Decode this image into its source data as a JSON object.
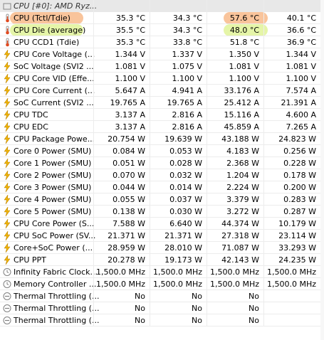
{
  "colors": {
    "highlight_orange": "#f9c49b",
    "highlight_green": "#e5f5a8",
    "header_bg": "#e8e8e8",
    "thermometer": "#e04a20",
    "bolt": "#f0b400",
    "circle_icon": "#808080"
  },
  "header": {
    "label": "CPU [#0]: AMD Ryz..."
  },
  "rows": [
    {
      "label": "CPU (Tctl/Tdie)",
      "icon": "thermometer-icon",
      "values": [
        "35.3 °C",
        "34.3 °C",
        "57.6 °C",
        "40.1 °C"
      ],
      "highlight": "orange"
    },
    {
      "label": "CPU Die (average)",
      "icon": "thermometer-icon",
      "values": [
        "35.5 °C",
        "34.3 °C",
        "48.0 °C",
        "36.6 °C"
      ],
      "highlight": "green"
    },
    {
      "label": "CPU CCD1 (Tdie)",
      "icon": "thermometer-icon",
      "values": [
        "35.3 °C",
        "33.8 °C",
        "51.8 °C",
        "36.9 °C"
      ]
    },
    {
      "label": "CPU Core Voltage (...",
      "icon": "bolt-icon",
      "values": [
        "1.344 V",
        "1.337 V",
        "1.350 V",
        "1.344 V"
      ]
    },
    {
      "label": "SoC Voltage (SVI2 ...",
      "icon": "bolt-icon",
      "values": [
        "1.081 V",
        "1.075 V",
        "1.081 V",
        "1.081 V"
      ]
    },
    {
      "label": "CPU Core VID (Effe...",
      "icon": "bolt-icon",
      "values": [
        "1.100 V",
        "1.100 V",
        "1.100 V",
        "1.100 V"
      ]
    },
    {
      "label": "CPU Core Current (...",
      "icon": "bolt-icon",
      "values": [
        "5.647 A",
        "4.941 A",
        "33.176 A",
        "7.574 A"
      ]
    },
    {
      "label": "SoC Current (SVI2 ...",
      "icon": "bolt-icon",
      "values": [
        "19.765 A",
        "19.765 A",
        "25.412 A",
        "21.391 A"
      ]
    },
    {
      "label": "CPU TDC",
      "icon": "bolt-icon",
      "values": [
        "3.137 A",
        "2.816 A",
        "15.116 A",
        "4.600 A"
      ]
    },
    {
      "label": "CPU EDC",
      "icon": "bolt-icon",
      "values": [
        "3.137 A",
        "2.816 A",
        "45.859 A",
        "7.265 A"
      ]
    },
    {
      "label": "CPU Package Powe...",
      "icon": "bolt-icon",
      "values": [
        "20.754 W",
        "19.639 W",
        "43.188 W",
        "24.823 W"
      ]
    },
    {
      "label": "Core 0 Power (SMU)",
      "icon": "bolt-icon",
      "values": [
        "0.084 W",
        "0.053 W",
        "4.183 W",
        "0.256 W"
      ]
    },
    {
      "label": "Core 1 Power (SMU)",
      "icon": "bolt-icon",
      "values": [
        "0.051 W",
        "0.028 W",
        "2.368 W",
        "0.228 W"
      ]
    },
    {
      "label": "Core 2 Power (SMU)",
      "icon": "bolt-icon",
      "values": [
        "0.070 W",
        "0.032 W",
        "1.204 W",
        "0.178 W"
      ]
    },
    {
      "label": "Core 3 Power (SMU)",
      "icon": "bolt-icon",
      "values": [
        "0.044 W",
        "0.014 W",
        "2.224 W",
        "0.200 W"
      ]
    },
    {
      "label": "Core 4 Power (SMU)",
      "icon": "bolt-icon",
      "values": [
        "0.055 W",
        "0.037 W",
        "3.379 W",
        "0.283 W"
      ]
    },
    {
      "label": "Core 5 Power (SMU)",
      "icon": "bolt-icon",
      "values": [
        "0.138 W",
        "0.030 W",
        "3.272 W",
        "0.287 W"
      ]
    },
    {
      "label": "CPU Core Power (S...",
      "icon": "bolt-icon",
      "values": [
        "7.588 W",
        "6.640 W",
        "44.374 W",
        "10.179 W"
      ]
    },
    {
      "label": "CPU SoC Power (SV...",
      "icon": "bolt-icon",
      "values": [
        "21.371 W",
        "21.371 W",
        "27.318 W",
        "23.114 W"
      ]
    },
    {
      "label": "Core+SoC Power (...",
      "icon": "bolt-icon",
      "values": [
        "28.959 W",
        "28.010 W",
        "71.087 W",
        "33.293 W"
      ]
    },
    {
      "label": "CPU PPT",
      "icon": "bolt-icon",
      "values": [
        "20.278 W",
        "19.173 W",
        "42.143 W",
        "24.235 W"
      ]
    },
    {
      "label": "Infinity Fabric Clock...",
      "icon": "circle-icon",
      "values": [
        "1,500.0 MHz",
        "1,500.0 MHz",
        "1,500.0 MHz",
        "1,500.0 MHz"
      ]
    },
    {
      "label": "Memory Controller ...",
      "icon": "circle-icon",
      "values": [
        "1,500.0 MHz",
        "1,500.0 MHz",
        "1,500.0 MHz",
        "1,500.0 MHz"
      ]
    },
    {
      "label": "Thermal Throttling (...",
      "icon": "circle-minus-icon",
      "values": [
        "No",
        "No",
        "No",
        ""
      ]
    },
    {
      "label": "Thermal Throttling (...",
      "icon": "circle-minus-icon",
      "values": [
        "No",
        "No",
        "No",
        ""
      ]
    },
    {
      "label": "Thermal Throttling (...",
      "icon": "circle-minus-icon",
      "values": [
        "No",
        "No",
        "No",
        ""
      ]
    }
  ]
}
